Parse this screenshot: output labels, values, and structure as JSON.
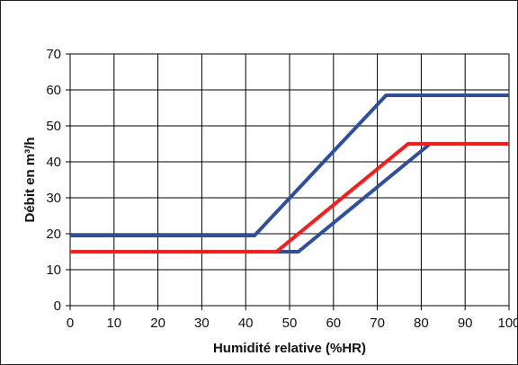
{
  "chart_data": {
    "type": "line",
    "title": "",
    "xlabel": "Humidité relative  (%HR)",
    "ylabel": "Débit  en  m³/h",
    "xlim": [
      0,
      100
    ],
    "ylim": [
      0,
      70
    ],
    "x_ticks": [
      "0",
      "10",
      "20",
      "30",
      "40",
      "50",
      "60",
      "70",
      "80",
      "90",
      "100"
    ],
    "y_ticks": [
      "0",
      "10",
      "20",
      "30",
      "40",
      "50",
      "60",
      "70"
    ],
    "grid": true,
    "legend": "none",
    "series": [
      {
        "color": "#2d4f9e",
        "x": [
          0,
          42,
          72,
          100
        ],
        "y": [
          19.5,
          19.5,
          58.5,
          58.5
        ]
      },
      {
        "color": "#2d4f9e",
        "x": [
          0,
          52,
          82
        ],
        "y": [
          15,
          15,
          45
        ]
      },
      {
        "color": "#ff1a1a",
        "x": [
          0,
          47,
          77,
          100
        ],
        "y": [
          15,
          15,
          45,
          45
        ]
      }
    ]
  }
}
